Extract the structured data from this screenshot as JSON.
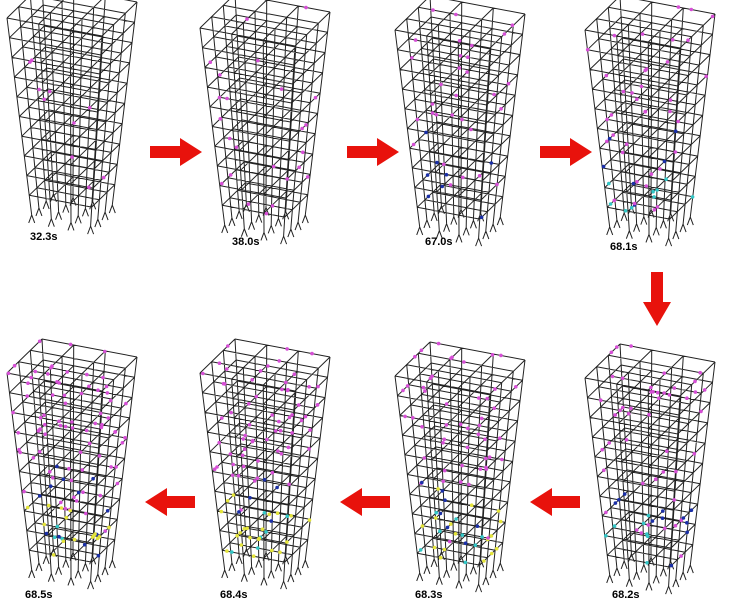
{
  "panels": [
    {
      "time": "32.3s"
    },
    {
      "time": "38.0s"
    },
    {
      "time": "67.0s"
    },
    {
      "time": "68.1s"
    },
    {
      "time": "68.2s"
    },
    {
      "time": "68.3s"
    },
    {
      "time": "68.4s"
    },
    {
      "time": "68.5s"
    }
  ]
}
